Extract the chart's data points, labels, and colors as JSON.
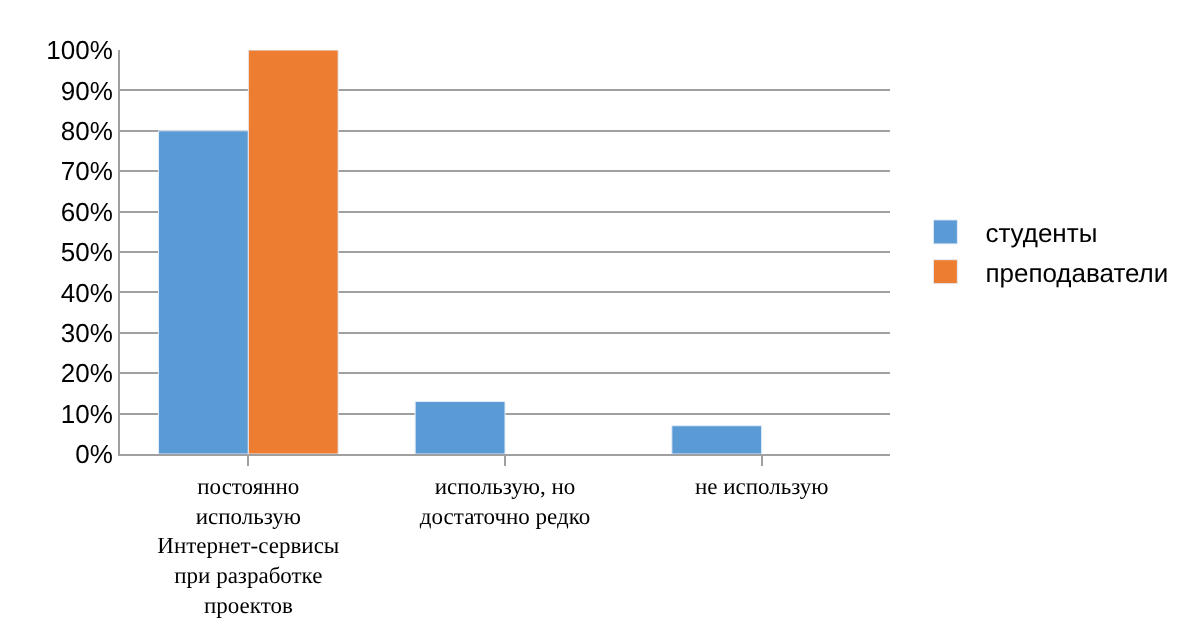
{
  "chart_data": {
    "type": "bar",
    "categories": [
      "постоянно использую Интернет-сервисы при разработке проектов",
      "использую, но достаточно редко",
      "не использую"
    ],
    "series": [
      {
        "name": "студенты",
        "color": "#5b9bd5",
        "values": [
          80,
          13,
          7
        ]
      },
      {
        "name": "преподаватели",
        "color": "#ed7d31",
        "values": [
          100,
          null,
          null
        ]
      }
    ],
    "ylim": [
      0,
      100
    ],
    "yticks": [
      {
        "value": 0,
        "label": "0%"
      },
      {
        "value": 10,
        "label": "10%"
      },
      {
        "value": 20,
        "label": "20%"
      },
      {
        "value": 30,
        "label": "30%"
      },
      {
        "value": 40,
        "label": "40%"
      },
      {
        "value": 50,
        "label": "50%"
      },
      {
        "value": 60,
        "label": "60%"
      },
      {
        "value": 70,
        "label": "70%"
      },
      {
        "value": 80,
        "label": "80%"
      },
      {
        "value": 90,
        "label": "90%"
      },
      {
        "value": 100,
        "label": "100%"
      }
    ],
    "grid": "y",
    "legend": "right"
  }
}
